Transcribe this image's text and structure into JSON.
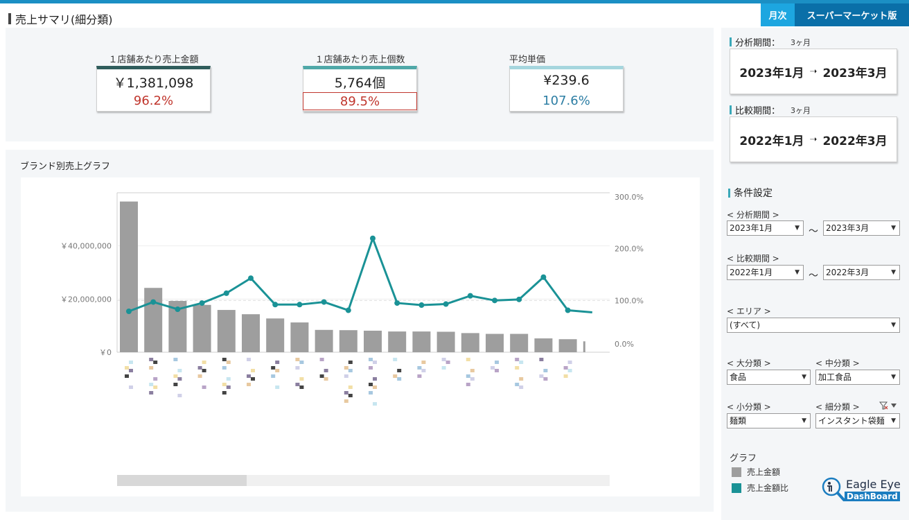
{
  "header": {
    "title": "売上サマリ(細分類)",
    "tag_month": "月次",
    "tag_market": "スーパーマーケット版"
  },
  "kpis": [
    {
      "label": "１店舗あたり売上金額",
      "value": "￥1,381,098",
      "ratio": "96.2%",
      "accent": "#2f5d5c"
    },
    {
      "label": "１店舗あたり売上個数",
      "value": "5,764個",
      "ratio": "89.5%",
      "accent": "#4fa8a8"
    },
    {
      "label": "平均単価",
      "value": "¥239.6",
      "ratio": "107.6%",
      "accent": "#a5d6de"
    }
  ],
  "chart_panel": {
    "title": "ブランド別売上グラフ"
  },
  "chart_data": {
    "type": "bar",
    "title": "ブランド別売上グラフ",
    "categories": [
      "",
      "",
      "",
      "",
      "",
      "",
      "",
      "",
      "",
      "",
      "",
      "",
      "",
      "",
      "",
      "",
      "",
      "",
      "",
      ""
    ],
    "series": [
      {
        "values": [
          56700000,
          24200000,
          19300000,
          17800000,
          15900000,
          14300000,
          12700000,
          11200000,
          8400000,
          8300000,
          8100000,
          7800000,
          7800000,
          7700000,
          7200000,
          6900000,
          6900000,
          5200000,
          4900000,
          4100000
        ]
      },
      {
        "values": [
          79,
          97,
          83,
          95,
          114,
          143,
          92,
          92,
          97,
          81,
          220,
          95,
          91,
          93,
          109,
          100,
          102,
          145,
          81,
          77
        ]
      }
    ],
    "y_left_ticks": [
      "￥40,000,000",
      "￥20,000,000",
      "￥0"
    ],
    "y_right_ticks": [
      "300.0%",
      "200.0%",
      "100.0%",
      "0.0%"
    ],
    "ylim_left": [
      0,
      60000000
    ],
    "ylim_right": [
      0,
      300
    ],
    "grid": true,
    "colors": {
      "bar": "#9e9e9e",
      "line": "#1a9296"
    }
  },
  "sidebar": {
    "analysis_period": {
      "label": "分析期間：",
      "months": "3ヶ月",
      "start": "2023年1月",
      "end": "2023年3月"
    },
    "compare_period": {
      "label": "比較期間：",
      "months": "3ヶ月",
      "start": "2022年1月",
      "end": "2022年3月"
    },
    "conditions_title": "条件設定",
    "filters": {
      "analysis_label": "< 分析期間 >",
      "analysis_from": "2023年1月",
      "analysis_to": "2023年3月",
      "compare_label": "< 比較期間 >",
      "compare_from": "2022年1月",
      "compare_to": "2022年3月",
      "tilde": "～",
      "area_label": "< エリア >",
      "area_value": "(すべて)",
      "major_label": "< 大分類 >",
      "major_value": "食品",
      "middle_label": "< 中分類 >",
      "middle_value": "加工食品",
      "minor_label": "< 小分類 >",
      "minor_value": "麺類",
      "detail_label": "< 細分類 >",
      "detail_value": "インスタント袋麺"
    },
    "legend": {
      "title": "グラフ",
      "items": [
        {
          "label": "売上金額",
          "color": "#9e9e9e"
        },
        {
          "label": "売上金額比",
          "color": "#1a9296"
        }
      ]
    },
    "logo": {
      "line1": "Eagle Eye",
      "line2": "DashBoard"
    }
  }
}
